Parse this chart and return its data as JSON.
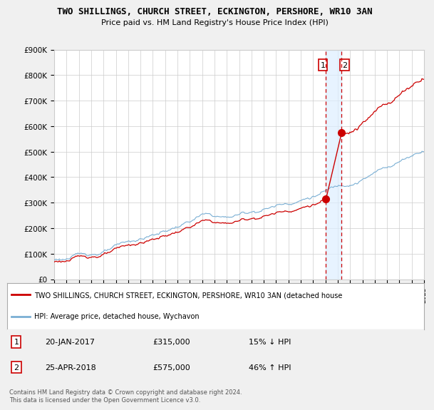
{
  "title": "TWO SHILLINGS, CHURCH STREET, ECKINGTON, PERSHORE, WR10 3AN",
  "subtitle": "Price paid vs. HM Land Registry's House Price Index (HPI)",
  "legend_line1": "TWO SHILLINGS, CHURCH STREET, ECKINGTON, PERSHORE, WR10 3AN (detached house",
  "legend_line2": "HPI: Average price, detached house, Wychavon",
  "footnote": "Contains HM Land Registry data © Crown copyright and database right 2024.\nThis data is licensed under the Open Government Licence v3.0.",
  "table": [
    {
      "num": "1",
      "date": "20-JAN-2017",
      "price": "£315,000",
      "change": "15% ↓ HPI"
    },
    {
      "num": "2",
      "date": "25-APR-2018",
      "price": "£575,000",
      "change": "46% ↑ HPI"
    }
  ],
  "sale1_year": 2017.05,
  "sale1_price": 315000,
  "sale2_year": 2018.32,
  "sale2_price": 575000,
  "vline1_year": 2017.05,
  "vline2_year": 2018.32,
  "ymin": 0,
  "ymax": 900000,
  "xmin": 1995,
  "xmax": 2025,
  "red_color": "#cc0000",
  "blue_color": "#7aafd4",
  "grid_color": "#cccccc",
  "background_chart": "#ffffff",
  "background_fig": "#f0f0f0",
  "shade_color": "#ddeeff"
}
